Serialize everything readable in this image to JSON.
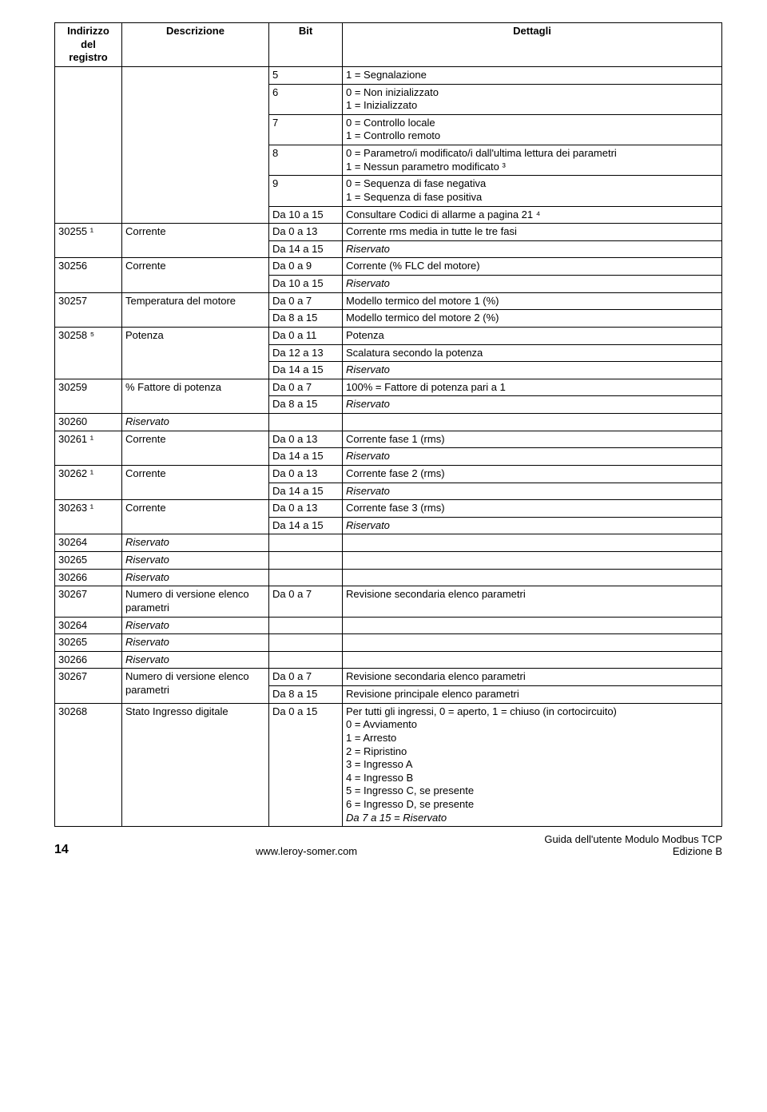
{
  "headers": {
    "c1a": "Indirizzo",
    "c1b": "del",
    "c1c": "registro",
    "c2": "Descrizione",
    "c3": "Bit",
    "c4": "Dettagli"
  },
  "rows": [
    {
      "c1": "",
      "c2": "",
      "c3": "5",
      "c4": "1 = Segnalazione"
    },
    {
      "c3": "6",
      "c4": "0 = Non inizializzato\n1 = Inizializzato"
    },
    {
      "c3": "7",
      "c4": "0 = Controllo locale\n1 = Controllo remoto"
    },
    {
      "c3": "8",
      "c4": "0 = Parametro/i modificato/i dall'ultima lettura dei parametri\n1 = Nessun parametro modificato ³"
    },
    {
      "c3": "9",
      "c4": "0 = Sequenza di fase negativa\n1 = Sequenza di fase positiva"
    },
    {
      "c3": "Da 10 a 15",
      "c4": "Consultare Codici di allarme a pagina 21 ⁴"
    },
    {
      "c1": "30255 ¹",
      "c2": "Corrente",
      "c3": "Da 0 a 13",
      "c4": "Corrente rms media in tutte le tre fasi"
    },
    {
      "c3": "Da 14 a 15",
      "c4i": "Riservato"
    },
    {
      "c1": "30256",
      "c2": "Corrente",
      "c3": "Da 0 a 9",
      "c4": "Corrente (% FLC del motore)"
    },
    {
      "c3": "Da 10 a 15",
      "c4i": "Riservato"
    },
    {
      "c1": "30257",
      "c2": "Temperatura del motore",
      "c3": "Da 0 a 7",
      "c4": "Modello termico del motore 1 (%)"
    },
    {
      "c3": "Da 8 a 15",
      "c4": "Modello termico del motore 2 (%)"
    },
    {
      "c1": "30258 ⁵",
      "c2": "Potenza",
      "c3": "Da 0 a 11",
      "c4": "Potenza"
    },
    {
      "c3": "Da 12 a 13",
      "c4": "Scalatura secondo la potenza"
    },
    {
      "c3": "Da 14 a 15",
      "c4i": "Riservato"
    },
    {
      "c1": "30259",
      "c2": "% Fattore di potenza",
      "c3": "Da 0 a 7",
      "c4": "100% = Fattore di potenza pari a 1"
    },
    {
      "c3": "Da 8 a 15",
      "c4i": "Riservato"
    },
    {
      "c1": "30260",
      "c2i": "Riservato",
      "c3": "",
      "c4": ""
    },
    {
      "c1": "30261 ¹",
      "c2": "Corrente",
      "c3": "Da 0 a 13",
      "c4": "Corrente fase 1 (rms)"
    },
    {
      "c3": "Da 14 a 15",
      "c4i": "Riservato"
    },
    {
      "c1": "30262 ¹",
      "c2": "Corrente",
      "c3": "Da 0 a 13",
      "c4": "Corrente fase 2 (rms)"
    },
    {
      "c3": "Da 14 a 15",
      "c4i": "Riservato"
    },
    {
      "c1": "30263 ¹",
      "c2": "Corrente",
      "c3": "Da 0 a 13",
      "c4": "Corrente fase 3 (rms)"
    },
    {
      "c3": "Da 14 a 15",
      "c4i": "Riservato"
    },
    {
      "c1": "30264",
      "c2i": "Riservato",
      "c3": "",
      "c4": ""
    },
    {
      "c1": "30265",
      "c2i": "Riservato",
      "c3": "",
      "c4": ""
    },
    {
      "c1": "30266",
      "c2i": "Riservato",
      "c3": "",
      "c4": ""
    },
    {
      "c1": "30267",
      "c2": "Numero di versione elenco parametri",
      "c3": "Da 0 a 7",
      "c4": "Revisione secondaria elenco parametri"
    },
    {
      "c1": "30264",
      "c2i": "Riservato",
      "c3": "",
      "c4": ""
    },
    {
      "c1": "30265",
      "c2i": "Riservato",
      "c3": "",
      "c4": ""
    },
    {
      "c1": "30266",
      "c2i": "Riservato",
      "c3": "",
      "c4": ""
    },
    {
      "c1": "30267",
      "c2": "Numero di versione elenco parametri",
      "c3": "Da 0 a 7",
      "c4": "Revisione secondaria elenco parametri"
    },
    {
      "c3": "Da 8 a 15",
      "c4": "Revisione principale elenco parametri"
    },
    {
      "c1": "30268",
      "c2": "Stato Ingresso digitale",
      "c3": "Da 0 a 15",
      "c4": "Per tutti gli ingressi, 0 = aperto, 1 = chiuso (in cortocircuito)\n0 = Avviamento\n1 = Arresto\n2 = Ripristino\n3 = Ingresso A\n4 = Ingresso B\n5 = Ingresso C, se presente\n6 = Ingresso D, se presente",
      "c4_extra_i": "Da 7 a 15 = Riservato"
    }
  ],
  "footer": {
    "page": "14",
    "url": "www.leroy-somer.com",
    "r1": "Guida dell'utente Modulo Modbus TCP",
    "r2": "Edizione B"
  }
}
